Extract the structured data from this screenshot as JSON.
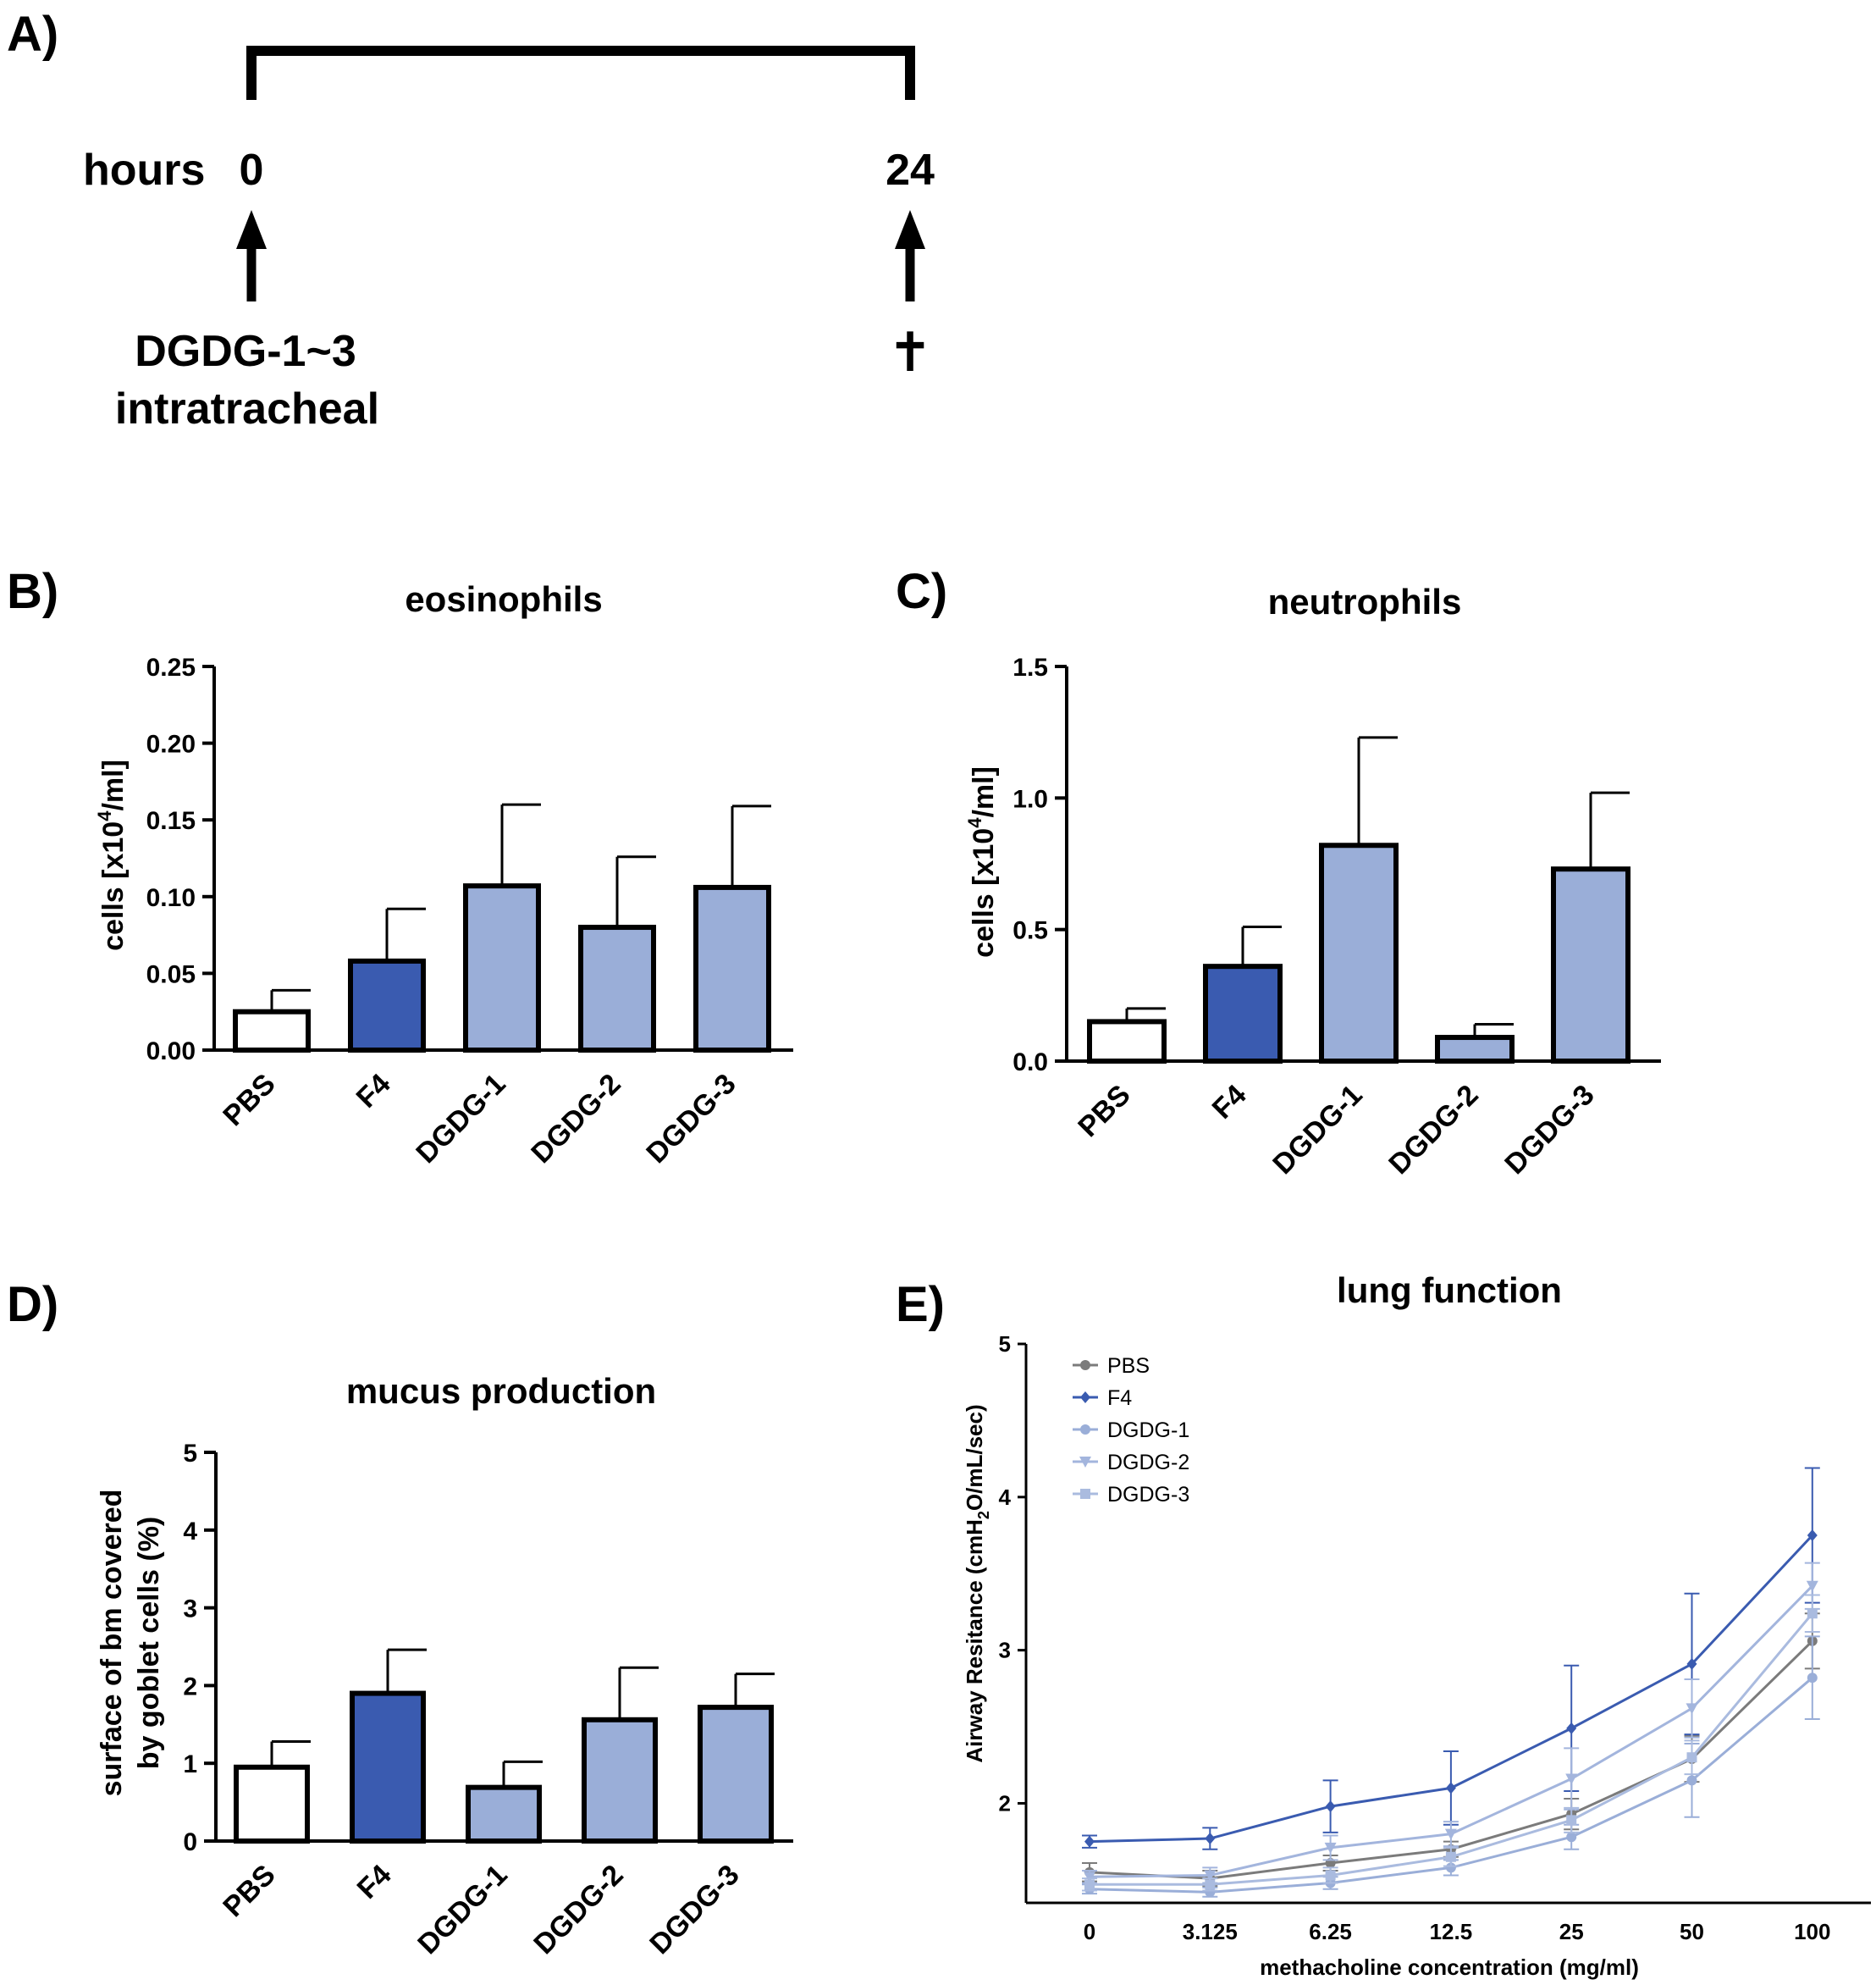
{
  "panels": {
    "a": {
      "label": "A)",
      "hours_label": "hours",
      "start": "0",
      "end": "24",
      "treatment_line1": "DGDG-1~3",
      "treatment_line2": "intratracheal",
      "sacrifice_symbol": "✝"
    },
    "b": {
      "label": "B)"
    },
    "c": {
      "label": "C)"
    },
    "d": {
      "label": "D)"
    },
    "e": {
      "label": "E)"
    }
  },
  "colors": {
    "pbs": "#ffffff",
    "f4": "#3a5bb0",
    "dgdg": "#9aaed8",
    "line_pbs": "#7b7b7b",
    "line_f4": "#3a5bb0",
    "line_dgdg1": "#9aaed8",
    "line_dgdg2": "#a3b5dd",
    "line_dgdg3": "#aabbdf"
  },
  "chart_data": [
    {
      "id": "b",
      "type": "bar",
      "title": "eosinophils",
      "ylabel_main": "cells [x10",
      "ylabel_sup": "4",
      "ylabel_tail": "/ml]",
      "categories": [
        "PBS",
        "F4",
        "DGDG-1",
        "DGDG-2",
        "DGDG-3"
      ],
      "values": [
        0.025,
        0.058,
        0.107,
        0.08,
        0.106
      ],
      "errors": [
        0.014,
        0.034,
        0.053,
        0.046,
        0.053
      ],
      "ylim": [
        0,
        0.25
      ],
      "yticks": [
        "0.00",
        "0.05",
        "0.10",
        "0.15",
        "0.20",
        "0.25"
      ]
    },
    {
      "id": "c",
      "type": "bar",
      "title": "neutrophils",
      "ylabel_main": "cells [x10",
      "ylabel_sup": "4",
      "ylabel_tail": "/ml]",
      "categories": [
        "PBS",
        "F4",
        "DGDG-1",
        "DGDG-2",
        "DGDG-3"
      ],
      "values": [
        0.15,
        0.36,
        0.82,
        0.09,
        0.73
      ],
      "errors": [
        0.05,
        0.15,
        0.41,
        0.05,
        0.29
      ],
      "ylim": [
        0,
        1.5
      ],
      "yticks": [
        "0.0",
        "0.5",
        "1.0",
        "1.5"
      ]
    },
    {
      "id": "d",
      "type": "bar",
      "title": "mucus production",
      "ylabel_line1": "surface of bm covered",
      "ylabel_line2": "by goblet cells (%)",
      "categories": [
        "PBS",
        "F4",
        "DGDG-1",
        "DGDG-2",
        "DGDG-3"
      ],
      "values": [
        0.95,
        1.9,
        0.69,
        1.56,
        1.72
      ],
      "errors": [
        0.33,
        0.56,
        0.33,
        0.67,
        0.43
      ],
      "ylim": [
        0,
        5
      ],
      "yticks": [
        "0",
        "1",
        "2",
        "3",
        "4",
        "5"
      ]
    },
    {
      "id": "e",
      "type": "line",
      "title": "lung function",
      "xlabel": "methacholine concentration (mg/ml)",
      "ylabel_main": "Airway Resitance (cmH",
      "ylabel_sub": "2",
      "ylabel_tail": "O/mL/sec)",
      "x": [
        "0",
        "3.125",
        "6.25",
        "12.5",
        "25",
        "50",
        "100"
      ],
      "ylim": [
        1.35,
        5
      ],
      "yticks": [
        "2",
        "3",
        "4",
        "5"
      ],
      "legend_position": "top-left",
      "series": [
        {
          "name": "PBS",
          "marker": "circle",
          "values": [
            1.55,
            1.51,
            1.61,
            1.7,
            1.93,
            2.29,
            3.06
          ],
          "errors": [
            0.06,
            0.05,
            0.05,
            0.05,
            0.1,
            0.15,
            0.18
          ]
        },
        {
          "name": "F4",
          "marker": "diamond",
          "values": [
            1.75,
            1.77,
            1.98,
            2.1,
            2.49,
            2.91,
            3.75
          ],
          "errors": [
            0.04,
            0.07,
            0.17,
            0.24,
            0.41,
            0.46,
            0.44
          ]
        },
        {
          "name": "DGDG-1",
          "marker": "circle",
          "values": [
            1.44,
            1.42,
            1.48,
            1.58,
            1.78,
            2.15,
            2.82
          ],
          "errors": [
            0.03,
            0.03,
            0.04,
            0.05,
            0.08,
            0.24,
            0.27
          ]
        },
        {
          "name": "DGDG-2",
          "marker": "triangle-down",
          "values": [
            1.52,
            1.53,
            1.71,
            1.8,
            2.16,
            2.62,
            3.42
          ],
          "errors": [
            0.04,
            0.05,
            0.08,
            0.08,
            0.2,
            0.19,
            0.15
          ]
        },
        {
          "name": "DGDG-3",
          "marker": "square",
          "values": [
            1.47,
            1.47,
            1.53,
            1.65,
            1.89,
            2.3,
            3.24
          ],
          "errors": [
            0.04,
            0.04,
            0.05,
            0.06,
            0.08,
            0.11,
            0.12
          ]
        }
      ]
    }
  ]
}
